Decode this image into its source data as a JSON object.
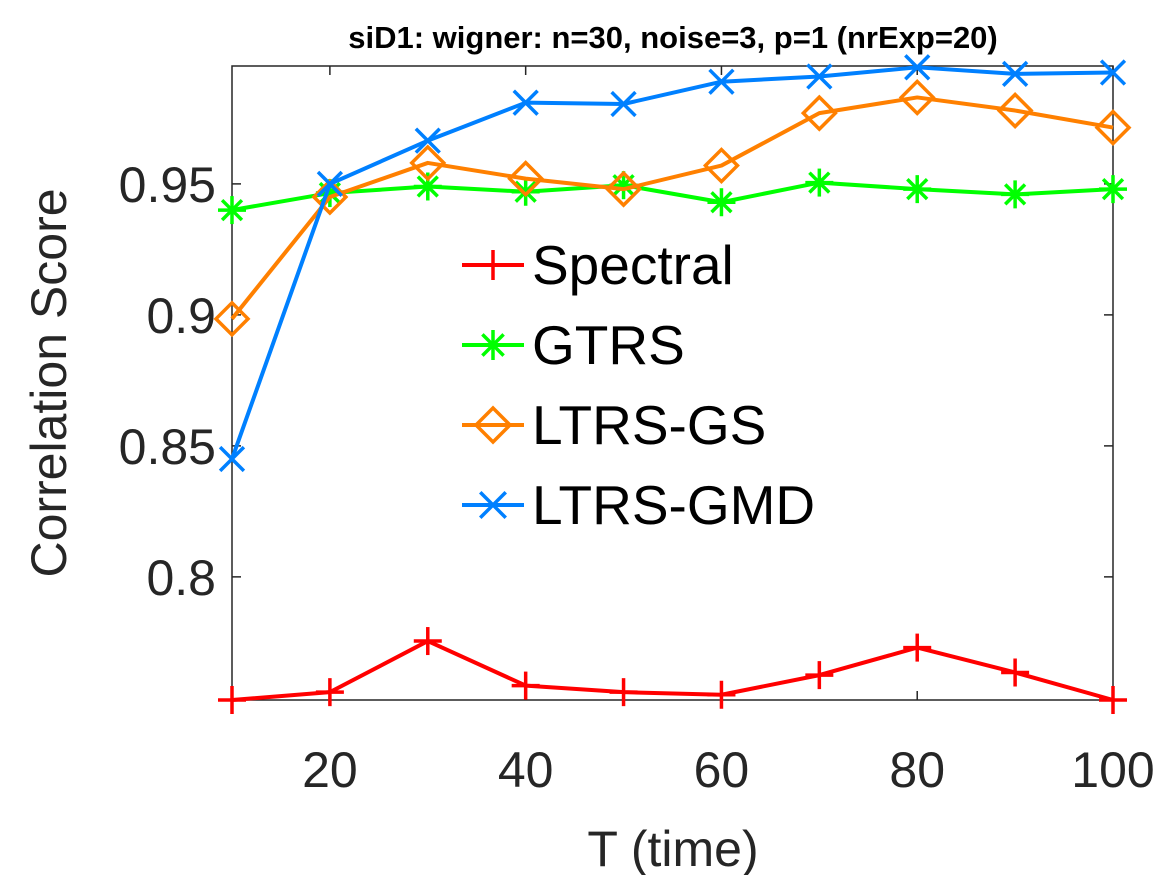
{
  "chart_data": {
    "type": "line",
    "title": "siD1: wigner: n=30, noise=3, p=1 (nrExp=20)",
    "xlabel": "T (time)",
    "ylabel": "Correlation Score",
    "xlim": [
      10,
      100
    ],
    "ylim": [
      0.753,
      0.995
    ],
    "xticks": [
      20,
      40,
      60,
      80,
      100
    ],
    "xtick_labels": [
      "20",
      "40",
      "60",
      "80",
      "100"
    ],
    "yticks": [
      0.8,
      0.85,
      0.9,
      0.95
    ],
    "ytick_labels": [
      "0.8",
      "0.85",
      "0.9",
      "0.95"
    ],
    "grid": false,
    "legend_position": "center",
    "x": [
      10,
      20,
      30,
      40,
      50,
      60,
      70,
      80,
      90,
      100
    ],
    "series": [
      {
        "name": "Spectral",
        "color": "#ff0000",
        "marker": "plus",
        "values": [
          0.753,
          0.756,
          0.7755,
          0.7585,
          0.756,
          0.755,
          0.7625,
          0.773,
          0.7635,
          0.753
        ]
      },
      {
        "name": "GTRS",
        "color": "#00ff00",
        "marker": "asterisk",
        "values": [
          0.94,
          0.9465,
          0.949,
          0.947,
          0.9495,
          0.943,
          0.9505,
          0.948,
          0.946,
          0.948
        ]
      },
      {
        "name": "LTRS-GS",
        "color": "#ff8000",
        "marker": "diamond",
        "values": [
          0.8985,
          0.945,
          0.958,
          0.952,
          0.948,
          0.957,
          0.977,
          0.983,
          0.978,
          0.9715
        ]
      },
      {
        "name": "LTRS-GMD",
        "color": "#0080ff",
        "marker": "x",
        "values": [
          0.845,
          0.95,
          0.9665,
          0.981,
          0.9805,
          0.989,
          0.991,
          0.9945,
          0.992,
          0.9925
        ]
      }
    ]
  }
}
